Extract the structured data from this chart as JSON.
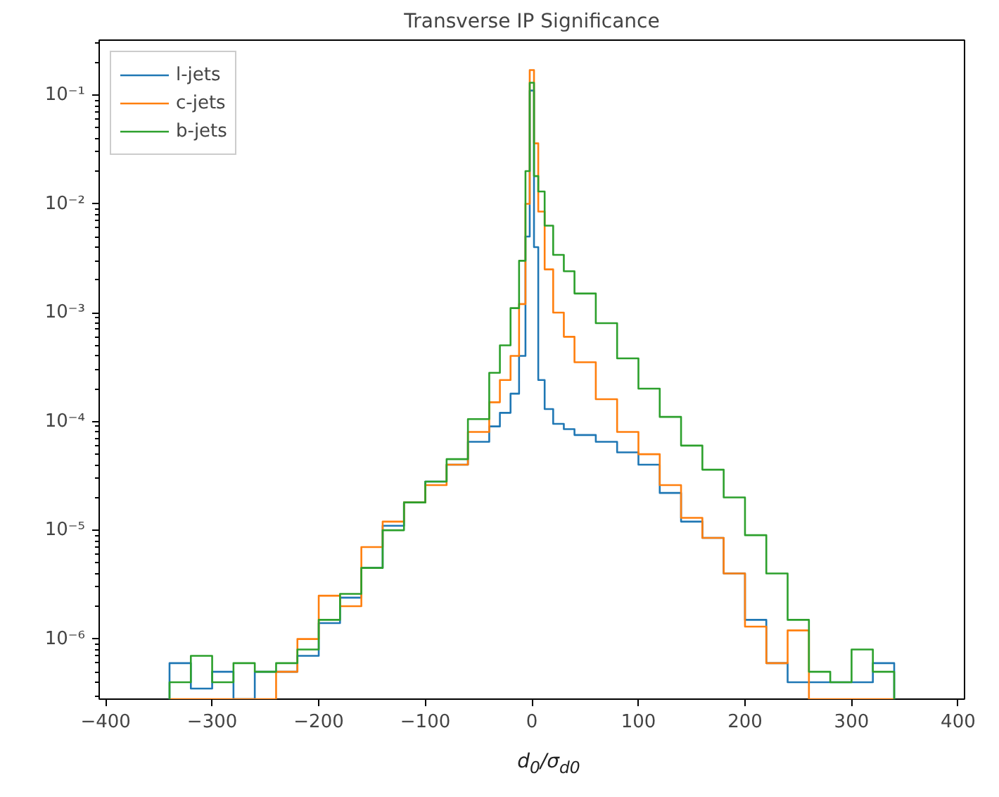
{
  "chart_data": {
    "type": "histogram",
    "title": "Transverse IP Significance",
    "xlabel": "d$_{0}$/σ$_{d0}$",
    "bins": [
      -340,
      -320,
      -300,
      -280,
      -260,
      -240,
      -220,
      -200,
      -180,
      -160,
      -140,
      -120,
      -100,
      -80,
      -60,
      -40,
      -30,
      -20,
      -12,
      -6,
      -2,
      2,
      6,
      12,
      20,
      30,
      40,
      60,
      80,
      100,
      120,
      140,
      160,
      180,
      200,
      220,
      240,
      260,
      280,
      300,
      320,
      340
    ],
    "series": [
      {
        "name": "l-jets",
        "color": "#1f77b4",
        "values": [
          6e-07,
          3.5e-07,
          5e-07,
          null,
          5e-07,
          5e-07,
          7e-07,
          1.4e-06,
          2.4e-06,
          4.5e-06,
          1.1e-05,
          1.8e-05,
          2.8e-05,
          4e-05,
          6.5e-05,
          9e-05,
          0.00012,
          0.00018,
          0.0004,
          0.005,
          0.11,
          0.004,
          0.00024,
          0.00013,
          9.5e-05,
          8.5e-05,
          7.5e-05,
          6.5e-05,
          5.2e-05,
          4e-05,
          2.2e-05,
          1.2e-05,
          8.5e-06,
          4e-06,
          1.5e-06,
          6e-07,
          4e-07,
          4e-07,
          4e-07,
          4e-07,
          6e-07
        ]
      },
      {
        "name": "c-jets",
        "color": "#ff7f0e",
        "values": [
          null,
          null,
          null,
          null,
          null,
          5e-07,
          1e-06,
          2.5e-06,
          2e-06,
          7e-06,
          1.2e-05,
          1.8e-05,
          2.6e-05,
          4e-05,
          8e-05,
          0.00015,
          0.00024,
          0.0004,
          0.0012,
          0.01,
          0.17,
          0.036,
          0.0085,
          0.0025,
          0.001,
          0.0006,
          0.00035,
          0.00016,
          8e-05,
          5e-05,
          2.6e-05,
          1.3e-05,
          8.5e-06,
          4e-06,
          1.3e-06,
          6e-07,
          1.2e-06,
          null,
          null,
          null,
          null
        ]
      },
      {
        "name": "b-jets",
        "color": "#2ca02c",
        "values": [
          4e-07,
          7e-07,
          4e-07,
          6e-07,
          5e-07,
          6e-07,
          8e-07,
          1.5e-06,
          2.6e-06,
          4.5e-06,
          1e-05,
          1.8e-05,
          2.8e-05,
          4.5e-05,
          0.000105,
          0.00028,
          0.0005,
          0.0011,
          0.003,
          0.02,
          0.13,
          0.018,
          0.013,
          0.0063,
          0.0034,
          0.0024,
          0.0015,
          0.0008,
          0.00038,
          0.0002,
          0.00011,
          6e-05,
          3.6e-05,
          2e-05,
          9e-06,
          4e-06,
          1.5e-06,
          5e-07,
          4e-07,
          8e-07,
          5e-07
        ]
      }
    ],
    "xlim": [
      -406,
      406
    ],
    "xticks": [
      {
        "value": -400,
        "label": "−400"
      },
      {
        "value": -300,
        "label": "−300"
      },
      {
        "value": -200,
        "label": "−200"
      },
      {
        "value": -100,
        "label": "−100"
      },
      0,
      100,
      200,
      300,
      400
    ],
    "ylim": [
      2.8e-07,
      0.32
    ],
    "log": true,
    "yticks": [
      {
        "value": 1e-06,
        "label": "10⁻⁶"
      },
      {
        "value": 1e-05,
        "label": "10⁻⁵"
      },
      {
        "value": 0.0001,
        "label": "10⁻⁴"
      },
      {
        "value": 0.001,
        "label": "10⁻³"
      },
      {
        "value": 0.01,
        "label": "10⁻²"
      },
      {
        "value": 0.1,
        "label": "10⁻¹"
      }
    ],
    "legend": "top left",
    "grid": false
  }
}
